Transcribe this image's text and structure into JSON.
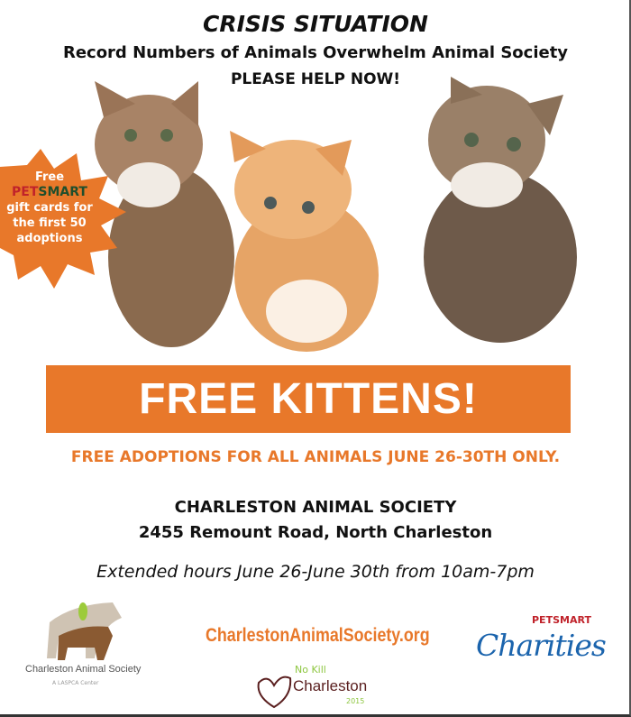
{
  "header": {
    "title": "CRISIS SITUATION",
    "subtitle": "Record Numbers of Animals Overwhelm Animal Society",
    "call_to_action": "PLEASE HELP NOW!"
  },
  "badge": {
    "line1": "Free",
    "brand_pet": "PET",
    "brand_smart": "SMART",
    "line2": "gift cards for",
    "line3": "the first 50",
    "line4": "adoptions"
  },
  "banner": {
    "text": "FREE KITTENS!"
  },
  "promo": "FREE ADOPTIONS FOR ALL ANIMALS JUNE 26-30TH ONLY.",
  "location": {
    "name": "CHARLESTON ANIMAL SOCIETY",
    "address": "2455 Remount Road, North Charleston"
  },
  "hours": "Extended hours June 26-June 30th from 10am-7pm",
  "footer": {
    "website": "CharlestonAnimalSociety.org",
    "cas_logo": "Charleston Animal Society",
    "cas_sub": "A LASPCA Center",
    "nokill_1": "No Kill",
    "nokill_2": "Charleston",
    "nokill_3": "2015",
    "petsmart_1": "PETSMART",
    "petsmart_2": "Charities"
  },
  "colors": {
    "accent": "#e8782a",
    "text": "#111111",
    "petsmart_blue": "#1b64ad"
  }
}
